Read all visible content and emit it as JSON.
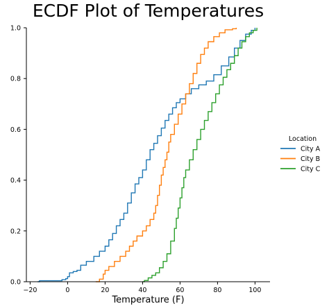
{
  "chart_data": {
    "type": "line",
    "subtype": "ecdf",
    "title": "ECDF Plot of Temperatures",
    "xlabel": "Temperature (F)",
    "ylabel": "",
    "xlim": [
      -22,
      108
    ],
    "ylim": [
      0,
      1.0
    ],
    "xticks": [
      {
        "value": -20,
        "label": "−20"
      },
      {
        "value": 0,
        "label": "0"
      },
      {
        "value": 20,
        "label": "20"
      },
      {
        "value": 40,
        "label": "40"
      },
      {
        "value": 60,
        "label": "60"
      },
      {
        "value": 80,
        "label": "80"
      },
      {
        "value": 100,
        "label": "100"
      }
    ],
    "yticks": [
      {
        "value": 0.0,
        "label": "0.0"
      },
      {
        "value": 0.2,
        "label": "0.2"
      },
      {
        "value": 0.4,
        "label": "0.4"
      },
      {
        "value": 0.6,
        "label": "0.6"
      },
      {
        "value": 0.8,
        "label": "0.8"
      },
      {
        "value": 1.0,
        "label": "1.0"
      }
    ],
    "grid": false,
    "legend": {
      "title": "Location",
      "placement": "right"
    },
    "series": [
      {
        "name": "City A",
        "color": "#1f77b4",
        "points": [
          [
            -16,
            0
          ],
          [
            -15,
            0.004
          ],
          [
            -4,
            0.004
          ],
          [
            -3,
            0.008
          ],
          [
            -1,
            0.012
          ],
          [
            0,
            0.02
          ],
          [
            1,
            0.035
          ],
          [
            3,
            0.04
          ],
          [
            5,
            0.045
          ],
          [
            7,
            0.065
          ],
          [
            10,
            0.08
          ],
          [
            14,
            0.1
          ],
          [
            17,
            0.12
          ],
          [
            20,
            0.14
          ],
          [
            22,
            0.165
          ],
          [
            24,
            0.19
          ],
          [
            26,
            0.22
          ],
          [
            28,
            0.245
          ],
          [
            30,
            0.27
          ],
          [
            32,
            0.31
          ],
          [
            34,
            0.35
          ],
          [
            36,
            0.385
          ],
          [
            38,
            0.41
          ],
          [
            40,
            0.44
          ],
          [
            42,
            0.48
          ],
          [
            44,
            0.52
          ],
          [
            46,
            0.545
          ],
          [
            48,
            0.575
          ],
          [
            50,
            0.605
          ],
          [
            52,
            0.635
          ],
          [
            54,
            0.66
          ],
          [
            56,
            0.685
          ],
          [
            58,
            0.705
          ],
          [
            60,
            0.72
          ],
          [
            63,
            0.74
          ],
          [
            66,
            0.76
          ],
          [
            70,
            0.775
          ],
          [
            74,
            0.79
          ],
          [
            78,
            0.815
          ],
          [
            82,
            0.85
          ],
          [
            86,
            0.885
          ],
          [
            89,
            0.92
          ],
          [
            92,
            0.95
          ],
          [
            95,
            0.975
          ],
          [
            98,
            0.99
          ],
          [
            100,
            1.0
          ]
        ]
      },
      {
        "name": "City B",
        "color": "#ff7f0e",
        "points": [
          [
            15,
            0
          ],
          [
            17,
            0.01
          ],
          [
            19,
            0.03
          ],
          [
            20,
            0.045
          ],
          [
            22,
            0.06
          ],
          [
            25,
            0.08
          ],
          [
            28,
            0.1
          ],
          [
            31,
            0.12
          ],
          [
            33,
            0.14
          ],
          [
            35,
            0.16
          ],
          [
            37,
            0.18
          ],
          [
            40,
            0.2
          ],
          [
            42,
            0.22
          ],
          [
            44,
            0.245
          ],
          [
            46,
            0.27
          ],
          [
            47,
            0.3
          ],
          [
            48,
            0.34
          ],
          [
            49,
            0.38
          ],
          [
            50,
            0.42
          ],
          [
            51,
            0.45
          ],
          [
            52,
            0.48
          ],
          [
            53,
            0.51
          ],
          [
            54,
            0.55
          ],
          [
            55,
            0.58
          ],
          [
            57,
            0.62
          ],
          [
            59,
            0.66
          ],
          [
            61,
            0.7
          ],
          [
            63,
            0.74
          ],
          [
            65,
            0.78
          ],
          [
            67,
            0.82
          ],
          [
            69,
            0.86
          ],
          [
            71,
            0.895
          ],
          [
            73,
            0.92
          ],
          [
            75,
            0.945
          ],
          [
            78,
            0.965
          ],
          [
            81,
            0.98
          ],
          [
            84,
            0.992
          ],
          [
            88,
            0.996
          ],
          [
            90,
            1.0
          ]
        ]
      },
      {
        "name": "City C",
        "color": "#2ca02c",
        "points": [
          [
            40,
            0
          ],
          [
            41,
            0.005
          ],
          [
            43,
            0.015
          ],
          [
            45,
            0.025
          ],
          [
            47,
            0.035
          ],
          [
            49,
            0.055
          ],
          [
            51,
            0.08
          ],
          [
            53,
            0.11
          ],
          [
            55,
            0.16
          ],
          [
            57,
            0.21
          ],
          [
            58,
            0.25
          ],
          [
            59,
            0.29
          ],
          [
            60,
            0.33
          ],
          [
            61,
            0.37
          ],
          [
            62,
            0.41
          ],
          [
            63,
            0.44
          ],
          [
            65,
            0.48
          ],
          [
            67,
            0.52
          ],
          [
            69,
            0.56
          ],
          [
            71,
            0.6
          ],
          [
            73,
            0.635
          ],
          [
            75,
            0.67
          ],
          [
            77,
            0.705
          ],
          [
            79,
            0.74
          ],
          [
            81,
            0.775
          ],
          [
            83,
            0.805
          ],
          [
            85,
            0.835
          ],
          [
            87,
            0.86
          ],
          [
            89,
            0.89
          ],
          [
            91,
            0.92
          ],
          [
            93,
            0.945
          ],
          [
            95,
            0.965
          ],
          [
            97,
            0.98
          ],
          [
            99,
            0.99
          ],
          [
            101,
            1.0
          ]
        ]
      }
    ]
  }
}
